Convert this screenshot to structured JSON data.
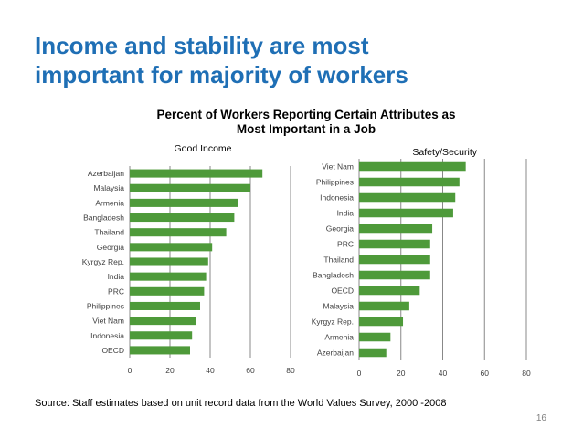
{
  "slide": {
    "title_line1": "Income and stability are most",
    "title_line2": "important for majority of workers",
    "chart_title_line1": "Percent of Workers Reporting Certain Attributes as",
    "chart_title_line2": "Most Important in a Job",
    "source": "Source: Staff estimates based on unit record data from the World Values Survey, 2000 -2008",
    "page_number": "16"
  },
  "colors": {
    "title": "#1F6FB5",
    "bar": "#4E9A3A",
    "grid": "#888888",
    "axis_text": "#404040"
  },
  "chart_data": [
    {
      "type": "bar",
      "orientation": "horizontal",
      "title": "Good Income",
      "categories": [
        "Azerbaijan",
        "Malaysia",
        "Armenia",
        "Bangladesh",
        "Thailand",
        "Georgia",
        "Kyrgyz Rep.",
        "India",
        "PRC",
        "Philippines",
        "Viet Nam",
        "Indonesia",
        "OECD"
      ],
      "values": [
        66,
        60,
        54,
        52,
        48,
        41,
        39,
        38,
        37,
        35,
        33,
        31,
        30
      ],
      "xlim": [
        0,
        80
      ],
      "ticks": [
        0,
        20,
        40,
        60,
        80
      ],
      "grid": true
    },
    {
      "type": "bar",
      "orientation": "horizontal",
      "title": "Safety/Security",
      "categories": [
        "Viet Nam",
        "Philippines",
        "Indonesia",
        "India",
        "Georgia",
        "PRC",
        "Thailand",
        "Bangladesh",
        "OECD",
        "Malaysia",
        "Kyrgyz Rep.",
        "Armenia",
        "Azerbaijan"
      ],
      "values": [
        51,
        48,
        46,
        45,
        35,
        34,
        34,
        34,
        29,
        24,
        21,
        15,
        13
      ],
      "xlim": [
        0,
        80
      ],
      "ticks": [
        0,
        20,
        40,
        60,
        80
      ],
      "grid": true
    }
  ]
}
